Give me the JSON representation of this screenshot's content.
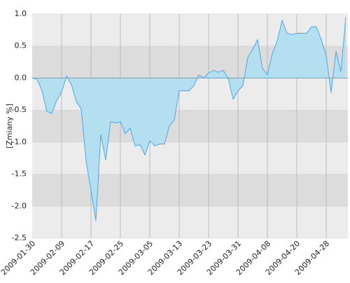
{
  "chart_data": {
    "type": "area",
    "y_label": "[Zmiany %]",
    "categories": [
      "2009-01-30",
      null,
      null,
      null,
      null,
      null,
      "2009-02-09",
      null,
      null,
      null,
      null,
      null,
      "2009-02-17",
      null,
      null,
      null,
      null,
      null,
      "2009-02-25",
      null,
      null,
      null,
      null,
      null,
      "2009-03-05",
      null,
      null,
      null,
      null,
      null,
      "2009-03-13",
      null,
      null,
      null,
      null,
      null,
      "2009-03-23",
      null,
      null,
      null,
      null,
      null,
      "2009-03-31",
      null,
      null,
      null,
      null,
      null,
      "2009-04-08",
      null,
      null,
      null,
      null,
      null,
      "2009-04-20",
      null,
      null,
      null,
      null,
      null,
      "2009-04-28",
      null,
      null,
      null,
      null
    ],
    "values": [
      0.0,
      -0.02,
      -0.2,
      -0.52,
      -0.55,
      -0.35,
      -0.22,
      0.03,
      -0.1,
      -0.37,
      -0.48,
      -1.3,
      -1.75,
      -2.23,
      -0.88,
      -1.28,
      -0.68,
      -0.7,
      -0.68,
      -0.87,
      -0.78,
      -1.06,
      -1.04,
      -1.2,
      -0.98,
      -1.06,
      -1.03,
      -1.03,
      -0.75,
      -0.65,
      -0.2,
      -0.2,
      -0.2,
      -0.12,
      0.05,
      0.0,
      0.08,
      0.12,
      0.09,
      0.12,
      0.0,
      -0.33,
      -0.2,
      -0.12,
      0.32,
      0.45,
      0.6,
      0.15,
      0.05,
      0.38,
      0.58,
      0.9,
      0.7,
      0.68,
      0.7,
      0.7,
      0.7,
      0.8,
      0.8,
      0.6,
      0.35,
      -0.23,
      0.42,
      0.1,
      0.95
    ],
    "color": "#4da6e8",
    "fill_color": "#b3dff0",
    "ylim": [
      -2.5,
      1.0
    ],
    "yticks": [
      {
        "value": 1.0,
        "label": "1.0"
      },
      {
        "value": 0.5,
        "label": "0.5"
      },
      {
        "value": 0.0,
        "label": "0.0"
      },
      {
        "value": -0.5,
        "label": "-0.5"
      },
      {
        "value": -1.0,
        "label": "-1.0"
      },
      -1.5,
      {
        "value": -2.0,
        "label": "-2.0"
      },
      -2.5
    ],
    "grid": true
  }
}
